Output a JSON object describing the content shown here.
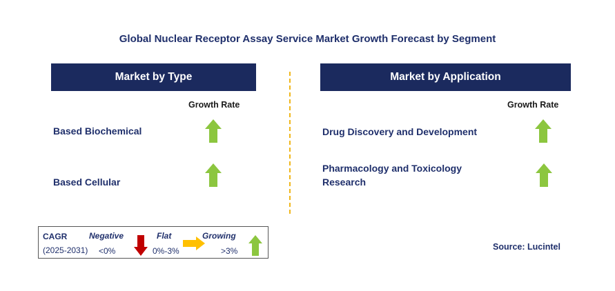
{
  "chart_data": {
    "type": "table",
    "title": "Global Nuclear Receptor Assay Service Market Growth Forecast by Segment",
    "panels": [
      {
        "header": "Market by Type",
        "column_label": "Growth Rate",
        "rows": [
          {
            "segment": "Based Biochemical",
            "growth": "growing"
          },
          {
            "segment": "Based Cellular",
            "growth": "growing"
          }
        ]
      },
      {
        "header": "Market by Application",
        "column_label": "Growth Rate",
        "rows": [
          {
            "segment": "Drug Discovery and Development",
            "growth": "growing"
          },
          {
            "segment": "Pharmacology and Toxicology Research",
            "line1": "Pharmacology and Toxicology",
            "line2": "Research",
            "growth": "growing"
          }
        ]
      }
    ],
    "legend": {
      "cagr_label": "CAGR",
      "period": "(2025-2031)",
      "negative": {
        "label": "Negative",
        "range": "<0%"
      },
      "flat": {
        "label": "Flat",
        "range": "0%-3%"
      },
      "growing": {
        "label": "Growing",
        "range": ">3%"
      }
    },
    "source": "Source: Lucintel"
  },
  "colors": {
    "header_bg": "#1b2a5e",
    "text_navy": "#1f2f6b",
    "up_arrow": "#8cc63f",
    "down_arrow": "#c00000",
    "flat_arrow": "#ffc000",
    "divider": "#f0b61a"
  },
  "icons": {
    "growing": "green-up-arrow-icon",
    "negative": "red-down-arrow-icon",
    "flat": "yellow-right-arrow-icon"
  }
}
